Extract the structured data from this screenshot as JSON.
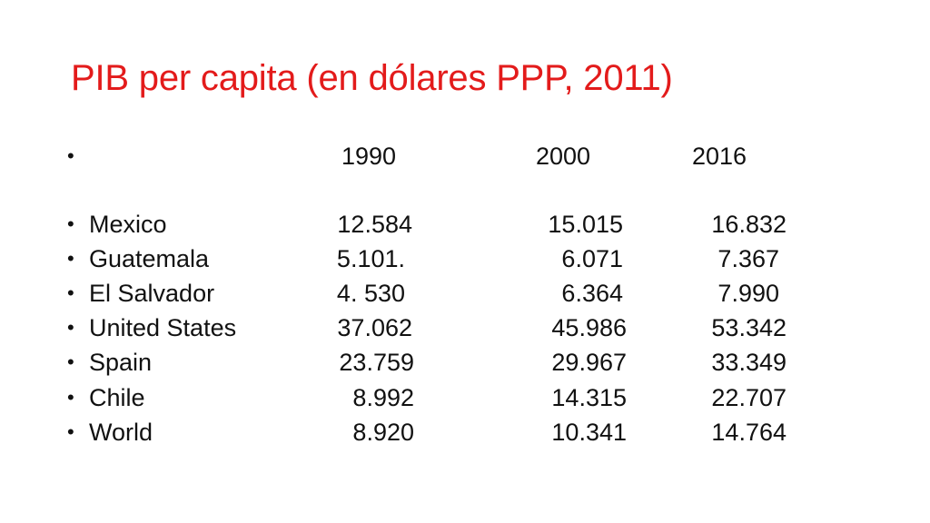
{
  "slide": {
    "title": "PIB per capita (en dólares PPP, 2011)",
    "bullet_symbol": "•",
    "header": {
      "years": [
        "1990",
        "2000",
        "2016"
      ]
    },
    "accent_color": "#e31b1b",
    "rows": [
      {
        "country": "Mexico",
        "v1990": "12.584",
        "v2000": "15.015",
        "v2016": "16.832"
      },
      {
        "country": "Guatemala",
        "v1990": "5.101.",
        "v2000": "6.071",
        "v2016": "7.367"
      },
      {
        "country": "El Salvador",
        "v1990": "4. 530",
        "v2000": "6.364",
        "v2016": "7.990"
      },
      {
        "country": "United States",
        "v1990": "37.062",
        "v2000": "45.986",
        "v2016": "53.342"
      },
      {
        "country": "Spain",
        "v1990": "23.759",
        "v2000": "29.967",
        "v2016": "33.349"
      },
      {
        "country": "Chile",
        "v1990": "8.992",
        "v2000": "14.315",
        "v2016": "22.707"
      },
      {
        "country": "World",
        "v1990": "8.920",
        "v2000": "10.341",
        "v2016": "14.764"
      }
    ]
  }
}
